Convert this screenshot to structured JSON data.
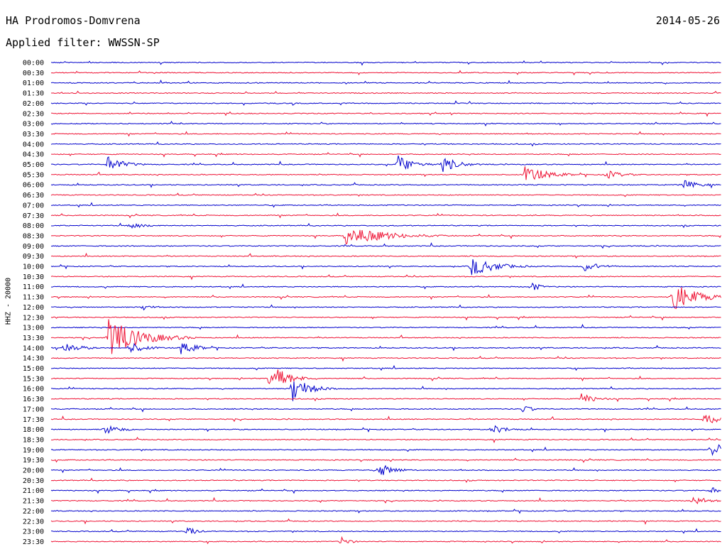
{
  "header": {
    "station": "HA Prodromos-Domvrena",
    "date": "2014-05-26",
    "filter_line": "Applied filter: WWSSN-SP"
  },
  "chart_data": {
    "type": "line",
    "subtype": "helicorder",
    "channel_label": "HHZ - 20000",
    "grid": false,
    "colors": [
      "#0000cc",
      "#ee1133"
    ],
    "row_labels": [
      "00:00",
      "00:30",
      "01:00",
      "01:30",
      "02:00",
      "02:30",
      "03:00",
      "03:30",
      "04:00",
      "04:30",
      "05:00",
      "05:30",
      "06:00",
      "06:30",
      "07:00",
      "07:30",
      "08:00",
      "08:30",
      "09:00",
      "09:30",
      "10:00",
      "10:30",
      "11:00",
      "11:30",
      "12:00",
      "12:30",
      "13:00",
      "13:30",
      "14:00",
      "14:30",
      "15:00",
      "15:30",
      "16:00",
      "16:30",
      "17:00",
      "17:30",
      "18:00",
      "18:30",
      "19:00",
      "19:30",
      "20:00",
      "20:30",
      "21:00",
      "21:30",
      "22:00",
      "22:30",
      "23:00",
      "23:30"
    ],
    "events": [
      {
        "row": 10,
        "minute": 2.5,
        "amp": 12,
        "dur": 2
      },
      {
        "row": 10,
        "minute": 15.5,
        "amp": 14,
        "dur": 2
      },
      {
        "row": 10,
        "minute": 17.5,
        "amp": 12,
        "dur": 2
      },
      {
        "row": 11,
        "minute": 21.2,
        "amp": 12,
        "dur": 3
      },
      {
        "row": 11,
        "minute": 24.8,
        "amp": 7,
        "dur": 2
      },
      {
        "row": 12,
        "minute": 28.3,
        "amp": 7,
        "dur": 2
      },
      {
        "row": 16,
        "minute": 3.5,
        "amp": 6,
        "dur": 2
      },
      {
        "row": 17,
        "minute": 13.2,
        "amp": 14,
        "dur": 5
      },
      {
        "row": 20,
        "minute": 18.8,
        "amp": 14,
        "dur": 3
      },
      {
        "row": 20,
        "minute": 23.8,
        "amp": 8,
        "dur": 2
      },
      {
        "row": 22,
        "minute": 21.5,
        "amp": 8,
        "dur": 1
      },
      {
        "row": 23,
        "minute": 27.8,
        "amp": 22,
        "dur": 3
      },
      {
        "row": 24,
        "minute": 4.1,
        "amp": 6,
        "dur": 1
      },
      {
        "row": 27,
        "minute": 2.5,
        "amp": 28,
        "dur": 4
      },
      {
        "row": 28,
        "minute": 0.6,
        "amp": 8,
        "dur": 2
      },
      {
        "row": 28,
        "minute": 3.5,
        "amp": 8,
        "dur": 2
      },
      {
        "row": 28,
        "minute": 5.8,
        "amp": 10,
        "dur": 2
      },
      {
        "row": 31,
        "minute": 9.8,
        "amp": 24,
        "dur": 2
      },
      {
        "row": 32,
        "minute": 10.8,
        "amp": 20,
        "dur": 2
      },
      {
        "row": 33,
        "minute": 23.7,
        "amp": 8,
        "dur": 2
      },
      {
        "row": 34,
        "minute": 21.1,
        "amp": 8,
        "dur": 1
      },
      {
        "row": 35,
        "minute": 29.2,
        "amp": 9,
        "dur": 2
      },
      {
        "row": 36,
        "minute": 2.4,
        "amp": 7,
        "dur": 2
      },
      {
        "row": 36,
        "minute": 19.7,
        "amp": 7,
        "dur": 2
      },
      {
        "row": 38,
        "minute": 29.5,
        "amp": 11,
        "dur": 3
      },
      {
        "row": 40,
        "minute": 14.6,
        "amp": 11,
        "dur": 2
      },
      {
        "row": 43,
        "minute": 28.7,
        "amp": 6,
        "dur": 2
      },
      {
        "row": 42,
        "minute": 29.5,
        "amp": 5,
        "dur": 2
      },
      {
        "row": 46,
        "minute": 6.1,
        "amp": 9,
        "dur": 1
      },
      {
        "row": 47,
        "minute": 13.0,
        "amp": 8,
        "dur": 1
      }
    ]
  }
}
